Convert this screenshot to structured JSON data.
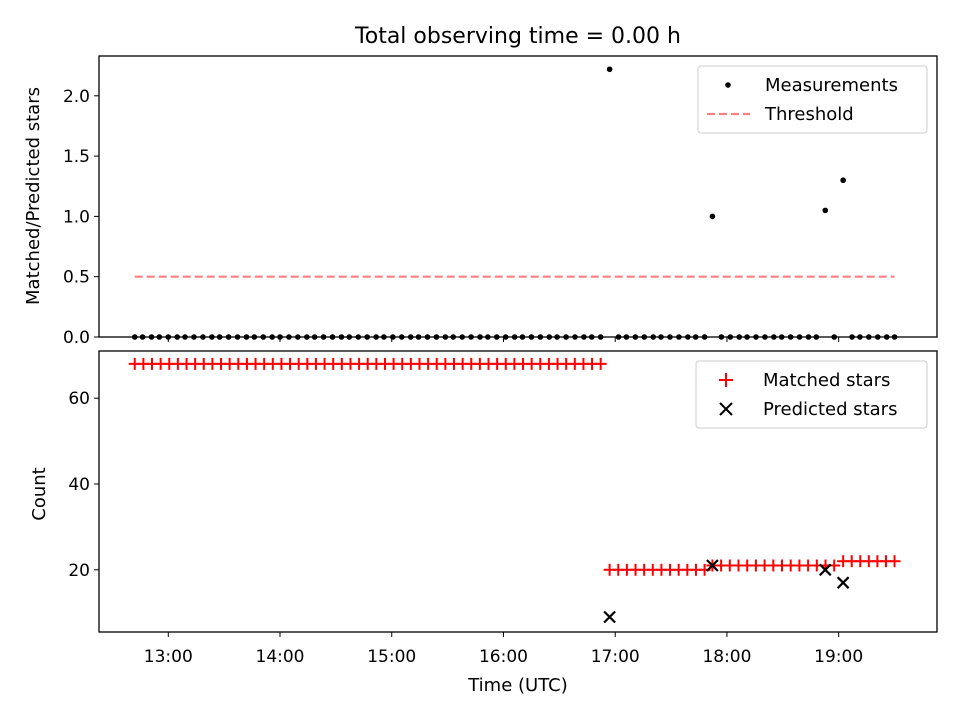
{
  "figure_title": "Total observing time = 0.00 h",
  "chart_data": [
    {
      "type": "scatter",
      "panel": "top",
      "title": "Total observing time = 0.00 h",
      "xlabel": "",
      "ylabel": "Matched/Predicted stars",
      "ylim": [
        0,
        2.33
      ],
      "yticks": [
        0.0,
        0.5,
        1.0,
        1.5,
        2.0
      ],
      "ytick_labels": [
        "0.0",
        "0.5",
        "1.0",
        "1.5",
        "2.0"
      ],
      "legend": {
        "position": "top-right",
        "entries": [
          "Measurements",
          "Threshold"
        ]
      },
      "threshold": {
        "name": "Threshold",
        "value": 0.5,
        "x_start": 12.7,
        "x_end": 19.5,
        "color": "#ff7f7f",
        "style": "dashed"
      },
      "series": [
        {
          "name": "Measurements",
          "color": "#000000",
          "points": [
            [
              12.7,
              0
            ],
            [
              12.77,
              0
            ],
            [
              12.85,
              0
            ],
            [
              12.92,
              0
            ],
            [
              13.0,
              0
            ],
            [
              13.08,
              0
            ],
            [
              13.15,
              0
            ],
            [
              13.23,
              0
            ],
            [
              13.31,
              0
            ],
            [
              13.39,
              0
            ],
            [
              13.46,
              0
            ],
            [
              13.54,
              0
            ],
            [
              13.62,
              0
            ],
            [
              13.7,
              0
            ],
            [
              13.77,
              0
            ],
            [
              13.85,
              0
            ],
            [
              13.93,
              0
            ],
            [
              14.0,
              0
            ],
            [
              14.08,
              0
            ],
            [
              14.16,
              0
            ],
            [
              14.24,
              0
            ],
            [
              14.31,
              0
            ],
            [
              14.39,
              0
            ],
            [
              14.47,
              0
            ],
            [
              14.55,
              0
            ],
            [
              14.62,
              0
            ],
            [
              14.7,
              0
            ],
            [
              14.78,
              0
            ],
            [
              14.86,
              0
            ],
            [
              14.93,
              0
            ],
            [
              15.01,
              0
            ],
            [
              15.09,
              0
            ],
            [
              15.17,
              0
            ],
            [
              15.24,
              0
            ],
            [
              15.32,
              0
            ],
            [
              15.4,
              0
            ],
            [
              15.48,
              0
            ],
            [
              15.55,
              0
            ],
            [
              15.63,
              0
            ],
            [
              15.71,
              0
            ],
            [
              15.79,
              0
            ],
            [
              15.86,
              0
            ],
            [
              15.94,
              0
            ],
            [
              16.02,
              0
            ],
            [
              16.1,
              0
            ],
            [
              16.17,
              0
            ],
            [
              16.25,
              0
            ],
            [
              16.33,
              0
            ],
            [
              16.41,
              0
            ],
            [
              16.48,
              0
            ],
            [
              16.56,
              0
            ],
            [
              16.64,
              0
            ],
            [
              16.72,
              0
            ],
            [
              16.79,
              0
            ],
            [
              16.87,
              0
            ],
            [
              16.95,
              2.22
            ],
            [
              17.03,
              0
            ],
            [
              17.1,
              0
            ],
            [
              17.18,
              0
            ],
            [
              17.26,
              0
            ],
            [
              17.34,
              0
            ],
            [
              17.41,
              0
            ],
            [
              17.49,
              0
            ],
            [
              17.57,
              0
            ],
            [
              17.65,
              0
            ],
            [
              17.72,
              0
            ],
            [
              17.8,
              0
            ],
            [
              17.87,
              1.0
            ],
            [
              17.95,
              0
            ],
            [
              18.03,
              0
            ],
            [
              18.11,
              0
            ],
            [
              18.18,
              0
            ],
            [
              18.26,
              0
            ],
            [
              18.34,
              0
            ],
            [
              18.42,
              0
            ],
            [
              18.49,
              0
            ],
            [
              18.57,
              0
            ],
            [
              18.65,
              0
            ],
            [
              18.73,
              0
            ],
            [
              18.8,
              0
            ],
            [
              18.88,
              1.05
            ],
            [
              18.96,
              0
            ],
            [
              19.04,
              1.3
            ],
            [
              19.12,
              0
            ],
            [
              19.19,
              0
            ],
            [
              19.27,
              0
            ],
            [
              19.35,
              0
            ],
            [
              19.43,
              0
            ],
            [
              19.5,
              0
            ]
          ]
        }
      ]
    },
    {
      "type": "scatter",
      "panel": "bottom",
      "xlabel": "Time (UTC)",
      "ylabel": "Count",
      "ylim": [
        5.5,
        71
      ],
      "xlim": [
        12.38,
        19.88
      ],
      "yticks": [
        20,
        40,
        60
      ],
      "ytick_labels": [
        "20",
        "40",
        "60"
      ],
      "xticks": [
        13,
        14,
        15,
        16,
        17,
        18,
        19
      ],
      "xtick_labels": [
        "13:00",
        "14:00",
        "15:00",
        "16:00",
        "17:00",
        "18:00",
        "19:00"
      ],
      "legend": {
        "position": "top-right",
        "entries": [
          "Matched stars",
          "Predicted stars"
        ]
      },
      "series": [
        {
          "name": "Matched stars",
          "marker": "plus",
          "color": "#ff0000",
          "segments": [
            {
              "x_start": 12.7,
              "x_end": 16.87,
              "count": 55,
              "value": 68
            },
            {
              "x_start": 16.95,
              "x_end": 17.8,
              "count": 12,
              "value": 20
            },
            {
              "x_start": 17.87,
              "x_end": 18.96,
              "count": 15,
              "value": 21
            },
            {
              "x_start": 19.04,
              "x_end": 19.5,
              "count": 7,
              "value": 22
            }
          ]
        },
        {
          "name": "Predicted stars",
          "marker": "x",
          "color": "#000000",
          "points": [
            [
              16.95,
              9
            ],
            [
              17.87,
              21
            ],
            [
              18.88,
              20
            ],
            [
              19.04,
              17
            ]
          ]
        }
      ]
    }
  ]
}
